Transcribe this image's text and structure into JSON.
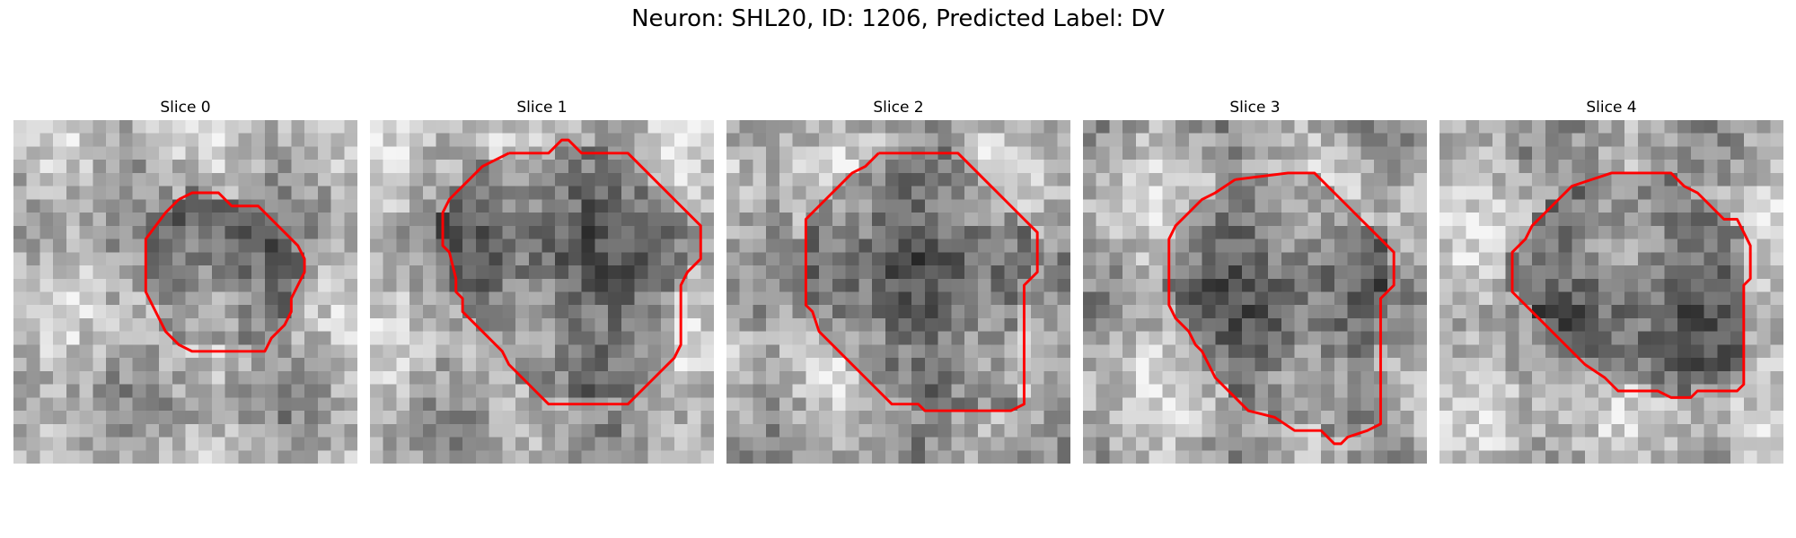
{
  "figure": {
    "suptitle": "Neuron: SHL20, ID: 1206, Predicted Label: DV",
    "contour_color": "#ff0000",
    "colormap": "gray",
    "grid_size": 26
  },
  "slices": [
    {
      "title": "Slice 0",
      "contour": [
        [
          12.5,
          6.0
        ],
        [
          13.5,
          5.5
        ],
        [
          15.5,
          5.5
        ],
        [
          16.5,
          6.5
        ],
        [
          18.5,
          6.5
        ],
        [
          20.5,
          8.5
        ],
        [
          21.5,
          9.5
        ],
        [
          22.0,
          10.5
        ],
        [
          22.0,
          11.5
        ],
        [
          21.5,
          12.5
        ],
        [
          21.0,
          13.5
        ],
        [
          21.0,
          14.5
        ],
        [
          20.5,
          15.5
        ],
        [
          19.5,
          16.5
        ],
        [
          19.0,
          17.5
        ],
        [
          18.5,
          17.5
        ],
        [
          13.5,
          17.5
        ],
        [
          12.5,
          17.0
        ],
        [
          11.5,
          16.0
        ],
        [
          10.5,
          14.0
        ],
        [
          10.0,
          13.0
        ],
        [
          10.0,
          10.0
        ],
        [
          10.0,
          9.0
        ],
        [
          11.5,
          7.0
        ],
        [
          12.5,
          6.0
        ]
      ]
    },
    {
      "title": "Slice 1",
      "contour": [
        [
          10.5,
          2.5
        ],
        [
          13.5,
          2.5
        ],
        [
          14.0,
          2.0
        ],
        [
          14.5,
          1.5
        ],
        [
          15.0,
          1.5
        ],
        [
          16.0,
          2.5
        ],
        [
          19.5,
          2.5
        ],
        [
          21.5,
          4.5
        ],
        [
          23.5,
          6.5
        ],
        [
          25.0,
          8.0
        ],
        [
          25.0,
          10.5
        ],
        [
          24.0,
          11.5
        ],
        [
          23.5,
          12.5
        ],
        [
          23.5,
          17.0
        ],
        [
          23.0,
          18.0
        ],
        [
          21.0,
          20.0
        ],
        [
          19.5,
          21.5
        ],
        [
          13.5,
          21.5
        ],
        [
          12.5,
          20.5
        ],
        [
          11.5,
          19.5
        ],
        [
          10.5,
          18.5
        ],
        [
          10.0,
          17.5
        ],
        [
          9.5,
          17.0
        ],
        [
          8.0,
          15.5
        ],
        [
          7.0,
          14.5
        ],
        [
          7.0,
          13.5
        ],
        [
          6.5,
          13.0
        ],
        [
          6.5,
          12.0
        ],
        [
          6.0,
          10.0
        ],
        [
          5.5,
          9.5
        ],
        [
          5.5,
          7.0
        ],
        [
          6.0,
          6.0
        ],
        [
          6.5,
          5.5
        ],
        [
          7.5,
          4.5
        ],
        [
          8.5,
          3.5
        ],
        [
          9.5,
          3.0
        ],
        [
          10.5,
          2.5
        ]
      ]
    },
    {
      "title": "Slice 2",
      "contour": [
        [
          11.5,
          2.5
        ],
        [
          17.5,
          2.5
        ],
        [
          18.5,
          3.5
        ],
        [
          19.5,
          4.5
        ],
        [
          20.5,
          5.5
        ],
        [
          22.5,
          7.5
        ],
        [
          23.5,
          8.5
        ],
        [
          23.5,
          11.5
        ],
        [
          22.5,
          12.5
        ],
        [
          22.5,
          13.5
        ],
        [
          22.5,
          21.5
        ],
        [
          21.5,
          22.0
        ],
        [
          15.0,
          22.0
        ],
        [
          14.5,
          21.5
        ],
        [
          12.5,
          21.5
        ],
        [
          10.5,
          19.5
        ],
        [
          8.5,
          17.5
        ],
        [
          7.0,
          16.0
        ],
        [
          6.5,
          14.5
        ],
        [
          6.0,
          14.0
        ],
        [
          6.0,
          7.5
        ],
        [
          7.5,
          6.0
        ],
        [
          8.5,
          5.0
        ],
        [
          9.5,
          4.0
        ],
        [
          10.5,
          3.5
        ],
        [
          11.5,
          2.5
        ]
      ]
    },
    {
      "title": "Slice 3",
      "contour": [
        [
          11.5,
          4.5
        ],
        [
          15.5,
          4.0
        ],
        [
          17.5,
          4.0
        ],
        [
          18.5,
          5.0
        ],
        [
          19.5,
          6.0
        ],
        [
          21.0,
          7.5
        ],
        [
          22.5,
          9.0
        ],
        [
          23.5,
          10.0
        ],
        [
          23.5,
          12.5
        ],
        [
          22.5,
          13.5
        ],
        [
          22.5,
          23.0
        ],
        [
          21.5,
          23.5
        ],
        [
          20.0,
          24.0
        ],
        [
          19.5,
          24.5
        ],
        [
          19.0,
          24.5
        ],
        [
          18.0,
          23.5
        ],
        [
          16.0,
          23.5
        ],
        [
          14.5,
          22.5
        ],
        [
          12.5,
          22.0
        ],
        [
          11.5,
          21.0
        ],
        [
          10.0,
          19.5
        ],
        [
          9.5,
          18.5
        ],
        [
          9.0,
          17.5
        ],
        [
          8.5,
          17.0
        ],
        [
          8.0,
          16.0
        ],
        [
          7.0,
          15.0
        ],
        [
          6.5,
          14.0
        ],
        [
          6.5,
          11.5
        ],
        [
          6.5,
          9.0
        ],
        [
          7.0,
          8.0
        ],
        [
          8.0,
          7.0
        ],
        [
          9.0,
          6.0
        ],
        [
          10.0,
          5.5
        ],
        [
          11.5,
          4.5
        ]
      ]
    },
    {
      "title": "Slice 4",
      "contour": [
        [
          11.5,
          4.5
        ],
        [
          13.0,
          4.0
        ],
        [
          17.5,
          4.0
        ],
        [
          18.5,
          5.0
        ],
        [
          19.5,
          5.5
        ],
        [
          20.5,
          6.5
        ],
        [
          21.5,
          7.5
        ],
        [
          22.5,
          7.5
        ],
        [
          23.0,
          8.5
        ],
        [
          23.5,
          9.5
        ],
        [
          23.5,
          12.0
        ],
        [
          23.0,
          12.5
        ],
        [
          23.0,
          20.0
        ],
        [
          22.5,
          20.5
        ],
        [
          19.5,
          20.5
        ],
        [
          19.0,
          21.0
        ],
        [
          18.5,
          21.0
        ],
        [
          17.5,
          21.0
        ],
        [
          16.5,
          20.5
        ],
        [
          15.5,
          20.5
        ],
        [
          13.5,
          20.5
        ],
        [
          12.5,
          19.5
        ],
        [
          11.0,
          18.5
        ],
        [
          10.0,
          17.5
        ],
        [
          9.0,
          16.5
        ],
        [
          8.0,
          15.5
        ],
        [
          7.0,
          14.5
        ],
        [
          6.0,
          13.5
        ],
        [
          5.5,
          13.0
        ],
        [
          5.5,
          10.5
        ],
        [
          5.5,
          10.0
        ],
        [
          6.5,
          9.0
        ],
        [
          7.0,
          8.0
        ],
        [
          8.0,
          7.0
        ],
        [
          9.0,
          6.0
        ],
        [
          10.0,
          5.0
        ],
        [
          11.5,
          4.5
        ]
      ]
    }
  ]
}
